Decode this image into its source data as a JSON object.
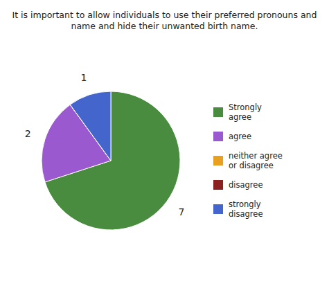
{
  "chart_data": {
    "type": "pie",
    "title": "It is important to allow individuals to use their preferred pronouns and\nname and hide their unwanted birth name.",
    "categories": [
      "Strongly\nagree",
      "agree",
      "neither agree\nor disagree",
      "disagree",
      "strongly\ndisagree"
    ],
    "values": [
      7,
      2,
      0,
      0,
      1
    ],
    "colors": [
      "#4a8c3f",
      "#9b59d0",
      "#e8a020",
      "#8b2020",
      "#4466cc"
    ],
    "data_labels": true,
    "legend": "right"
  }
}
